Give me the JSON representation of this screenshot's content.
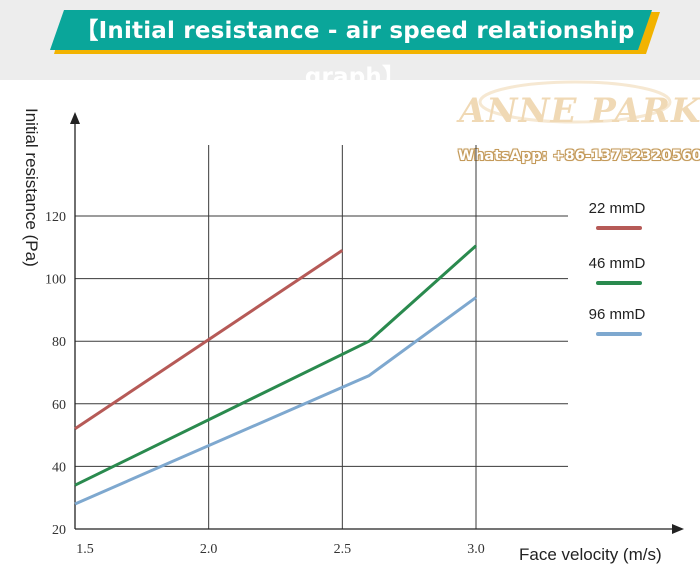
{
  "header": {
    "title": "【Initial resistance - air speed relationship graph】"
  },
  "watermark": {
    "brand": "ANNE PARKER",
    "whatsapp": "WhatsApp: +86-13752320560"
  },
  "colors": {
    "header_bg": "#ededed",
    "banner_green": "#0aa69a",
    "banner_gold": "#f2b300",
    "grid": "#3a3a3a",
    "axis": "#222222"
  },
  "chart_data": {
    "type": "line",
    "xlabel": "Face velocity (m/s)",
    "ylabel": "Initial resistance (Pa)",
    "xlim": [
      1.5,
      3.0
    ],
    "ylim": [
      20,
      120
    ],
    "x_ticks": [
      "1.5",
      "2.0",
      "2.5",
      "3.0"
    ],
    "y_ticks": [
      "20",
      "40",
      "60",
      "80",
      "100",
      "120"
    ],
    "grid": true,
    "legend_position": "right",
    "series": [
      {
        "name": "22 mmD",
        "color": "#b65a57",
        "x": [
          1.5,
          2.5
        ],
        "y": [
          52,
          109
        ]
      },
      {
        "name": "46 mmD",
        "color": "#2a8a4e",
        "x": [
          1.5,
          2.6,
          3.0
        ],
        "y": [
          34,
          80,
          110.5
        ]
      },
      {
        "name": "96 mmD",
        "color": "#7ea8cf",
        "x": [
          1.5,
          2.6,
          3.0
        ],
        "y": [
          28,
          69,
          94
        ]
      }
    ]
  }
}
